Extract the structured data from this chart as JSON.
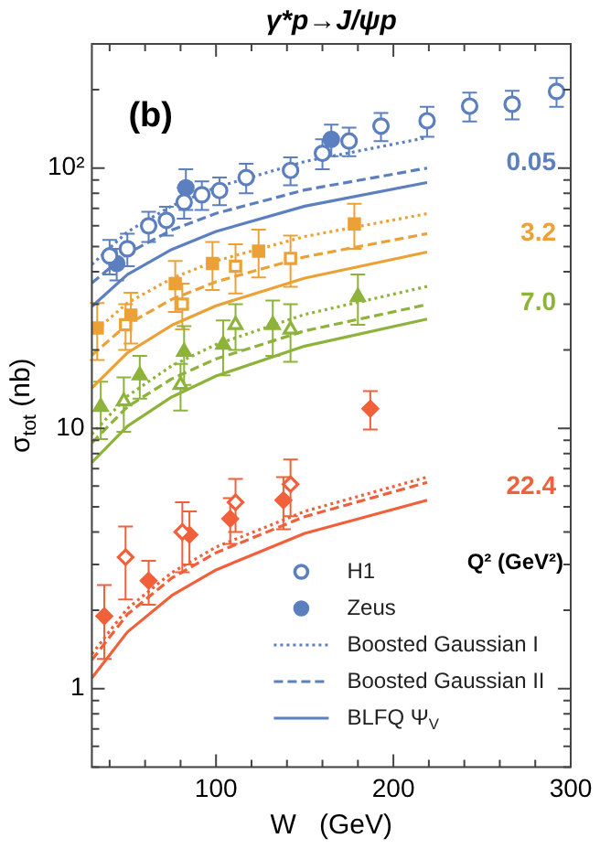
{
  "chart_data": {
    "type": "scatter",
    "title": "γ*p→J/ψp",
    "xlabel": "W   (GeV)",
    "ylabel": "σ$_{tot}$ (nb)",
    "xlim": [
      30,
      300
    ],
    "xticks": [
      {
        "value": 40,
        "label": null
      },
      {
        "value": 60,
        "label": null
      },
      {
        "value": 80,
        "label": null
      },
      100,
      {
        "value": 120,
        "label": null
      },
      {
        "value": 140,
        "label": null
      },
      {
        "value": 160,
        "label": null
      },
      {
        "value": 180,
        "label": null
      },
      200,
      {
        "value": 220,
        "label": null
      },
      {
        "value": 240,
        "label": null
      },
      {
        "value": 260,
        "label": null
      },
      {
        "value": 280,
        "label": null
      },
      300
    ],
    "ylim": [
      0.5,
      300
    ],
    "log": "y",
    "yticks": [
      {
        "value": 0.5,
        "label": null
      },
      {
        "value": 0.6,
        "label": null
      },
      {
        "value": 0.7,
        "label": null
      },
      {
        "value": 0.8,
        "label": null
      },
      {
        "value": 0.9,
        "label": null
      },
      1,
      {
        "value": 2,
        "label": null
      },
      {
        "value": 3,
        "label": null
      },
      {
        "value": 4,
        "label": null
      },
      {
        "value": 5,
        "label": null
      },
      {
        "value": 6,
        "label": null
      },
      {
        "value": 7,
        "label": null
      },
      {
        "value": 8,
        "label": null
      },
      {
        "value": 9,
        "label": null
      },
      10,
      {
        "value": 20,
        "label": null
      },
      {
        "value": 30,
        "label": null
      },
      {
        "value": 40,
        "label": null
      },
      {
        "value": 50,
        "label": null
      },
      {
        "value": 60,
        "label": null
      },
      {
        "value": 70,
        "label": null
      },
      {
        "value": 80,
        "label": null
      },
      {
        "value": 90,
        "label": null
      },
      {
        "value": 100,
        "label": "10²"
      },
      {
        "value": 200,
        "label": null
      },
      {
        "value": 300,
        "label": null
      }
    ],
    "grid": false,
    "legend": "bottom right",
    "annotations": [
      "(b)",
      "Q² (GeV²)",
      "0.05",
      "3.2",
      "7.0",
      "22.4"
    ],
    "series": [
      {
        "name": "H1",
        "type": "scatter",
        "marker": "circle",
        "color": "#5b7fbf",
        "x": [
          40,
          50,
          62,
          72,
          82,
          92,
          102,
          117,
          142,
          160,
          175,
          193,
          219,
          243,
          267,
          292
        ],
        "values": [
          46,
          49,
          60,
          63,
          74,
          79,
          82,
          92,
          98,
          114,
          127,
          145,
          152,
          173,
          176,
          197
        ],
        "errors": [
          7,
          7,
          8,
          8,
          10,
          10,
          10,
          12,
          12,
          15,
          16,
          18,
          20,
          22,
          22,
          25
        ]
      },
      {
        "name": "Zeus",
        "type": "scatter",
        "marker": "circle",
        "color": "#5b7fbf",
        "x": [
          44,
          83,
          165
        ],
        "values": [
          43,
          84,
          129
        ],
        "errors": [
          6,
          15,
          18
        ]
      },
      {
        "name": "Boosted Gaussian I",
        "type": "line",
        "line_style": "dotted",
        "color": "#5b7fbf",
        "x": [
          30,
          50,
          75,
          100,
          150,
          219
        ],
        "values": [
          42.6,
          56.9,
          71.6,
          84.3,
          106,
          131
        ]
      },
      {
        "name": "Boosted Gaussian II",
        "type": "line",
        "line_style": "dashed",
        "color": "#5b7fbf",
        "x": [
          30,
          50,
          75,
          100,
          150,
          219
        ],
        "values": [
          36.2,
          47,
          57.8,
          67,
          82.4,
          100
        ]
      },
      {
        "name": "BLFQ Ψ$_{V}$",
        "type": "line",
        "line_style": "solid",
        "color": "#5b7fbf",
        "x": [
          30,
          50,
          75,
          100,
          150,
          219
        ],
        "values": [
          29.4,
          39,
          48.7,
          57.1,
          71.4,
          88
        ]
      },
      {
        "type": "scatter",
        "marker": "square",
        "color": "#eba136",
        "x": [
          49,
          81,
          111,
          142
        ],
        "values": [
          25,
          30,
          42,
          45
        ],
        "errors": [
          5,
          6,
          9,
          10
        ]
      },
      {
        "type": "scatter",
        "marker": "square",
        "color": "#eba136",
        "x": [
          33,
          52,
          77,
          98,
          124,
          178
        ],
        "values": [
          24.3,
          27.2,
          36,
          43,
          48,
          61
        ],
        "errors": [
          6,
          6,
          8,
          9,
          10,
          12
        ]
      },
      {
        "type": "line",
        "line_style": "dotted",
        "color": "#eba136",
        "x": [
          30,
          50,
          75,
          100,
          150,
          219
        ],
        "values": [
          23.1,
          30.3,
          37.7,
          44,
          54.6,
          66.8
        ]
      },
      {
        "type": "line",
        "line_style": "dashed",
        "color": "#eba136",
        "x": [
          30,
          50,
          75,
          100,
          150,
          219
        ],
        "values": [
          19.1,
          25.1,
          31.3,
          36.6,
          45.6,
          56
        ]
      },
      {
        "type": "line",
        "line_style": "solid",
        "color": "#eba136",
        "x": [
          30,
          50,
          75,
          100,
          150,
          219
        ],
        "values": [
          14.3,
          19.5,
          24.9,
          29.6,
          37.8,
          47.6
        ]
      },
      {
        "type": "scatter",
        "marker": "triangle",
        "color": "#8db33a",
        "x": [
          48,
          80,
          111,
          142
        ],
        "values": [
          12.7,
          14.7,
          25,
          24
        ],
        "errors": [
          3,
          3,
          5,
          6
        ]
      },
      {
        "type": "scatter",
        "marker": "triangle",
        "color": "#8db33a",
        "x": [
          35,
          57,
          82,
          104,
          132,
          180
        ],
        "values": [
          12.1,
          16,
          19.7,
          21,
          25,
          32
        ],
        "errors": [
          3,
          3,
          5,
          5,
          6,
          7
        ]
      },
      {
        "type": "line",
        "line_style": "dotted",
        "color": "#8db33a",
        "x": [
          30,
          50,
          75,
          100,
          150,
          219
        ],
        "values": [
          9.5,
          13.3,
          17.4,
          21,
          27.4,
          35.1
        ]
      },
      {
        "type": "line",
        "line_style": "dashed",
        "color": "#8db33a",
        "x": [
          30,
          50,
          75,
          100,
          150,
          219
        ],
        "values": [
          8.8,
          12.1,
          15.5,
          18.5,
          23.7,
          29.9
        ]
      },
      {
        "type": "line",
        "line_style": "solid",
        "color": "#8db33a",
        "x": [
          30,
          50,
          75,
          100,
          150,
          219
        ],
        "values": [
          7.4,
          10.2,
          13.2,
          15.9,
          20.7,
          26.3
        ]
      },
      {
        "type": "scatter",
        "marker": "diamond",
        "color": "#f0603a",
        "x": [
          49,
          81,
          111,
          142
        ],
        "values": [
          3.2,
          4.0,
          5.2,
          6.1
        ],
        "errors": [
          1,
          1.2,
          1.2,
          1.5
        ]
      },
      {
        "type": "scatter",
        "marker": "diamond",
        "color": "#f0603a",
        "x": [
          37,
          62,
          85,
          108,
          138,
          187
        ],
        "values": [
          1.9,
          2.6,
          3.9,
          4.5,
          5.3,
          11.9
        ],
        "errors": [
          0.6,
          0.5,
          0.9,
          0.9,
          1.2,
          2
        ]
      },
      {
        "type": "line",
        "line_style": "dotted",
        "color": "#f0603a",
        "x": [
          30,
          50,
          75,
          100,
          150,
          219
        ],
        "values": [
          1.36,
          2.03,
          2.79,
          3.5,
          4.8,
          6.5
        ]
      },
      {
        "type": "line",
        "line_style": "dashed",
        "color": "#f0603a",
        "x": [
          30,
          50,
          75,
          100,
          150,
          219
        ],
        "values": [
          1.29,
          1.93,
          2.66,
          3.33,
          4.58,
          6.2
        ]
      },
      {
        "type": "line",
        "line_style": "solid",
        "color": "#f0603a",
        "x": [
          30,
          50,
          75,
          100,
          150,
          219
        ],
        "values": [
          1.1,
          1.65,
          2.28,
          2.86,
          3.95,
          5.3
        ]
      }
    ]
  }
}
